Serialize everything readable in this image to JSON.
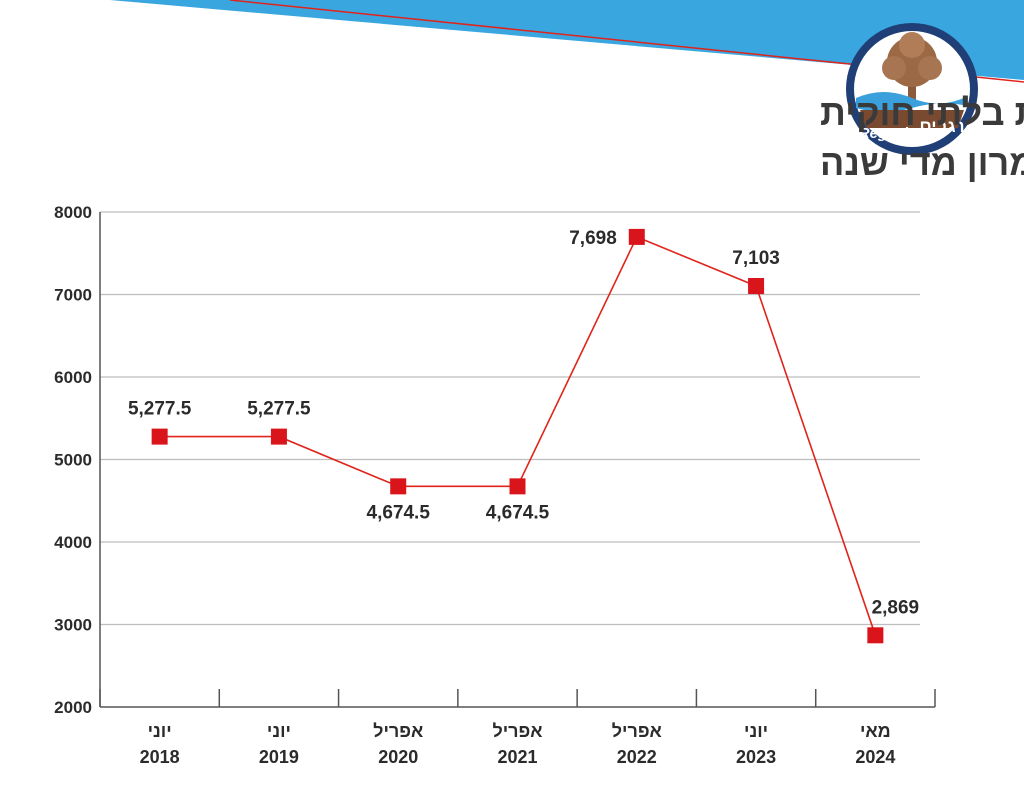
{
  "header": {
    "title_lines": [
      "תוספת בניה ערבית בלתי חוקית",
      "ביהודה ושומרון מדי שנה"
    ]
  },
  "logo": {
    "name_hebrew": "רגבים",
    "name_latin": "Regavim",
    "colors": {
      "ring": "#1f3f76",
      "tree": "#8a5a3a",
      "water": "#3aa0dc"
    }
  },
  "colors": {
    "banner": "#3aa6e0",
    "line": "#e0241b",
    "marker": "#d9141a",
    "grid": "#bdbdbd",
    "axis": "#555555",
    "text": "#2b2b2b"
  },
  "chart_data": {
    "type": "line",
    "title": "תוספת בניה ערבית בלתי חוקית ביהודה ושומרון מדי שנה",
    "categories": [
      [
        "יוני",
        "2018"
      ],
      [
        "יוני",
        "2019"
      ],
      [
        "אפריל",
        "2020"
      ],
      [
        "אפריל",
        "2021"
      ],
      [
        "אפריל",
        "2022"
      ],
      [
        "יוני",
        "2023"
      ],
      [
        "מאי",
        "2024"
      ]
    ],
    "values": [
      5277.5,
      5277.5,
      4674.5,
      4674.5,
      7698,
      7103,
      2869
    ],
    "data_labels": [
      "5,277.5",
      "5,277.5",
      "4,674.5",
      "4,674.5",
      "7,698",
      "7,103",
      "2,869"
    ],
    "label_position": [
      "above",
      "above",
      "below",
      "below",
      "left",
      "above",
      "above"
    ],
    "ylim": [
      2000,
      8000
    ],
    "yticks": [
      2000,
      3000,
      4000,
      5000,
      6000,
      7000,
      8000
    ],
    "ytick_labels": [
      "2000",
      "3000",
      "4000",
      "5000",
      "6000",
      "7000",
      "8000"
    ],
    "grid": true,
    "legend": false,
    "marker": "square"
  }
}
